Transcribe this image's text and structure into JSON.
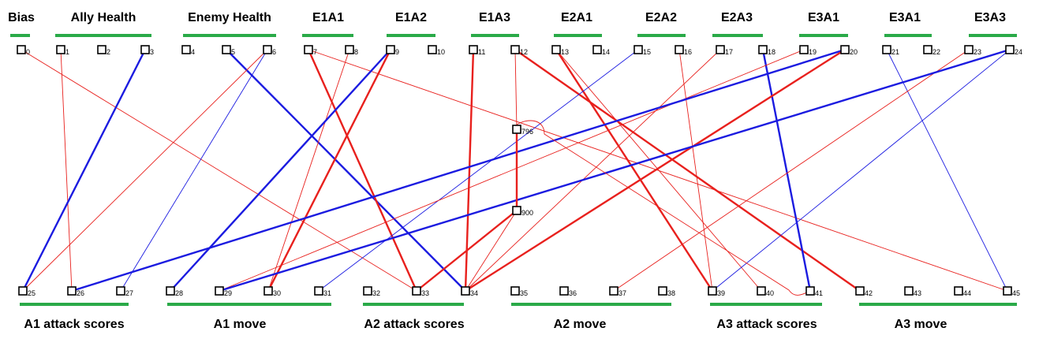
{
  "colors": {
    "positive": "#e8201d",
    "negative": "#1b1be0",
    "group_bar": "#2aaa48",
    "node_stroke": "#000000"
  },
  "input_groups": [
    {
      "label": "Bias",
      "nodes": [
        0
      ]
    },
    {
      "label": "Ally Health",
      "nodes": [
        1,
        2,
        3
      ]
    },
    {
      "label": "Enemy Health",
      "nodes": [
        4,
        5,
        6
      ]
    },
    {
      "label": "E1A1",
      "nodes": [
        7,
        8
      ]
    },
    {
      "label": "E1A2",
      "nodes": [
        9,
        10
      ]
    },
    {
      "label": "E1A3",
      "nodes": [
        11,
        12
      ]
    },
    {
      "label": "E2A1",
      "nodes": [
        13,
        14
      ]
    },
    {
      "label": "E2A2",
      "nodes": [
        15,
        16
      ]
    },
    {
      "label": "E2A3",
      "nodes": [
        17,
        18
      ]
    },
    {
      "label": "E3A1",
      "nodes": [
        19,
        20
      ]
    },
    {
      "label": "E3A1",
      "nodes": [
        21,
        22
      ]
    },
    {
      "label": "E3A3",
      "nodes": [
        23,
        24
      ]
    }
  ],
  "output_groups": [
    {
      "label": "A1 attack scores",
      "nodes": [
        25,
        26,
        27
      ]
    },
    {
      "label": "A1 move",
      "nodes": [
        28,
        29,
        30,
        31
      ]
    },
    {
      "label": "A2 attack scores",
      "nodes": [
        32,
        33,
        34
      ]
    },
    {
      "label": "A2 move",
      "nodes": [
        35,
        36,
        37,
        38
      ]
    },
    {
      "label": "A3 attack scores",
      "nodes": [
        39,
        40,
        41
      ]
    },
    {
      "label": "A3 move",
      "nodes": [
        42,
        43,
        44,
        45
      ]
    }
  ],
  "input_nodes": [
    "0",
    "1",
    "2",
    "3",
    "4",
    "5",
    "6",
    "7",
    "8",
    "9",
    "10",
    "11",
    "12",
    "13",
    "14",
    "15",
    "16",
    "17",
    "18",
    "19",
    "20",
    "21",
    "22",
    "23",
    "24"
  ],
  "output_nodes": [
    "25",
    "26",
    "27",
    "28",
    "29",
    "30",
    "31",
    "32",
    "33",
    "34",
    "35",
    "36",
    "37",
    "38",
    "39",
    "40",
    "41",
    "42",
    "43",
    "44",
    "45"
  ],
  "hidden_nodes": [
    "796",
    "900"
  ],
  "connections": [
    {
      "from": "0",
      "to": "33",
      "sign": "positive",
      "weight": "weak"
    },
    {
      "from": "1",
      "to": "26",
      "sign": "positive",
      "weight": "weak"
    },
    {
      "from": "3",
      "to": "25",
      "sign": "negative",
      "weight": "strong"
    },
    {
      "from": "5",
      "to": "34",
      "sign": "negative",
      "weight": "strong"
    },
    {
      "from": "6",
      "to": "25",
      "sign": "positive",
      "weight": "weak"
    },
    {
      "from": "6",
      "to": "27",
      "sign": "negative",
      "weight": "weak"
    },
    {
      "from": "7",
      "to": "33",
      "sign": "positive",
      "weight": "strong"
    },
    {
      "from": "7",
      "to": "45",
      "sign": "positive",
      "weight": "weak"
    },
    {
      "from": "8",
      "to": "30",
      "sign": "positive",
      "weight": "weak"
    },
    {
      "from": "9",
      "to": "28",
      "sign": "negative",
      "weight": "strong"
    },
    {
      "from": "9",
      "to": "30",
      "sign": "positive",
      "weight": "strong"
    },
    {
      "from": "11",
      "to": "34",
      "sign": "positive",
      "weight": "strong"
    },
    {
      "from": "12",
      "to": "42",
      "sign": "positive",
      "weight": "strong"
    },
    {
      "from": "13",
      "to": "39",
      "sign": "positive",
      "weight": "strong"
    },
    {
      "from": "13",
      "to": "40",
      "sign": "positive",
      "weight": "weak"
    },
    {
      "from": "15",
      "to": "31",
      "sign": "negative",
      "weight": "weak"
    },
    {
      "from": "16",
      "to": "39",
      "sign": "positive",
      "weight": "weak"
    },
    {
      "from": "17",
      "to": "34",
      "sign": "positive",
      "weight": "weak"
    },
    {
      "from": "18",
      "to": "41",
      "sign": "negative",
      "weight": "strong"
    },
    {
      "from": "19",
      "to": "29",
      "sign": "positive",
      "weight": "weak"
    },
    {
      "from": "20",
      "to": "26",
      "sign": "negative",
      "weight": "strong"
    },
    {
      "from": "20",
      "to": "34",
      "sign": "positive",
      "weight": "strong"
    },
    {
      "from": "21",
      "to": "45",
      "sign": "negative",
      "weight": "weak"
    },
    {
      "from": "23",
      "to": "37",
      "sign": "positive",
      "weight": "weak"
    },
    {
      "from": "24",
      "to": "29",
      "sign": "negative",
      "weight": "strong"
    },
    {
      "from": "24",
      "to": "39",
      "sign": "negative",
      "weight": "weak"
    },
    {
      "from": "12",
      "to": "796",
      "sign": "positive",
      "weight": "weak"
    },
    {
      "from": "796",
      "to": "41",
      "sign": "positive",
      "weight": "weak"
    },
    {
      "from": "796",
      "to": "900",
      "sign": "positive",
      "weight": "strong"
    },
    {
      "from": "900",
      "to": "33",
      "sign": "positive",
      "weight": "strong"
    },
    {
      "from": "900",
      "to": "34",
      "sign": "positive",
      "weight": "weak"
    }
  ]
}
